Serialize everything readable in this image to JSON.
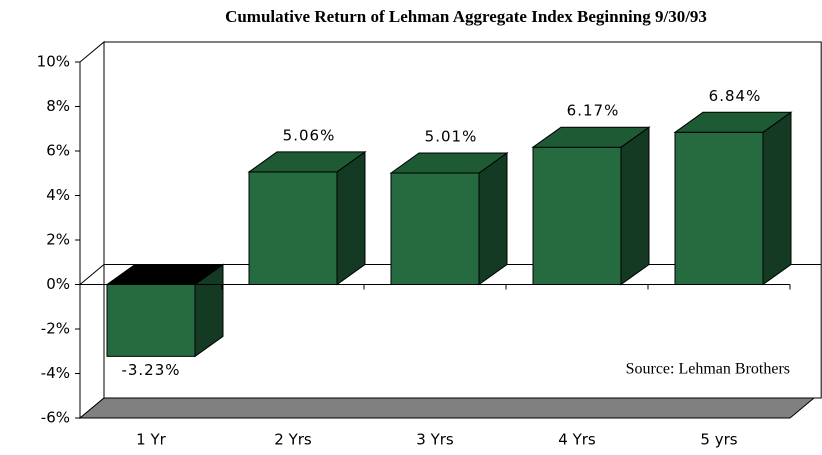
{
  "chart_data": {
    "type": "bar",
    "title": "Cumulative Return of Lehman Aggregate Index Beginning 9/30/93",
    "annotation": "Source: Lehman Brothers",
    "categories": [
      "1 Yr",
      "2 Yrs",
      "3 Yrs",
      "4 Yrs",
      "5 yrs"
    ],
    "values": [
      -3.23,
      5.06,
      5.01,
      6.17,
      6.84
    ],
    "value_labels": [
      "-3.23%",
      "5.06%",
      "5.01%",
      "6.17%",
      "6.84%"
    ],
    "color": "#266b40",
    "ylim": [
      -6,
      10
    ],
    "yticks": [
      {
        "value": -6,
        "label": "-6%"
      },
      {
        "value": -4,
        "label": "-4%"
      },
      {
        "value": -2,
        "label": "-2%"
      },
      {
        "value": 0,
        "label": "0%"
      },
      {
        "value": 2,
        "label": "2%"
      },
      {
        "value": 4,
        "label": "4%"
      },
      {
        "value": 6,
        "label": "6%"
      },
      {
        "value": 8,
        "label": "8%"
      },
      {
        "value": 10,
        "label": "10%"
      }
    ],
    "grid": false
  }
}
